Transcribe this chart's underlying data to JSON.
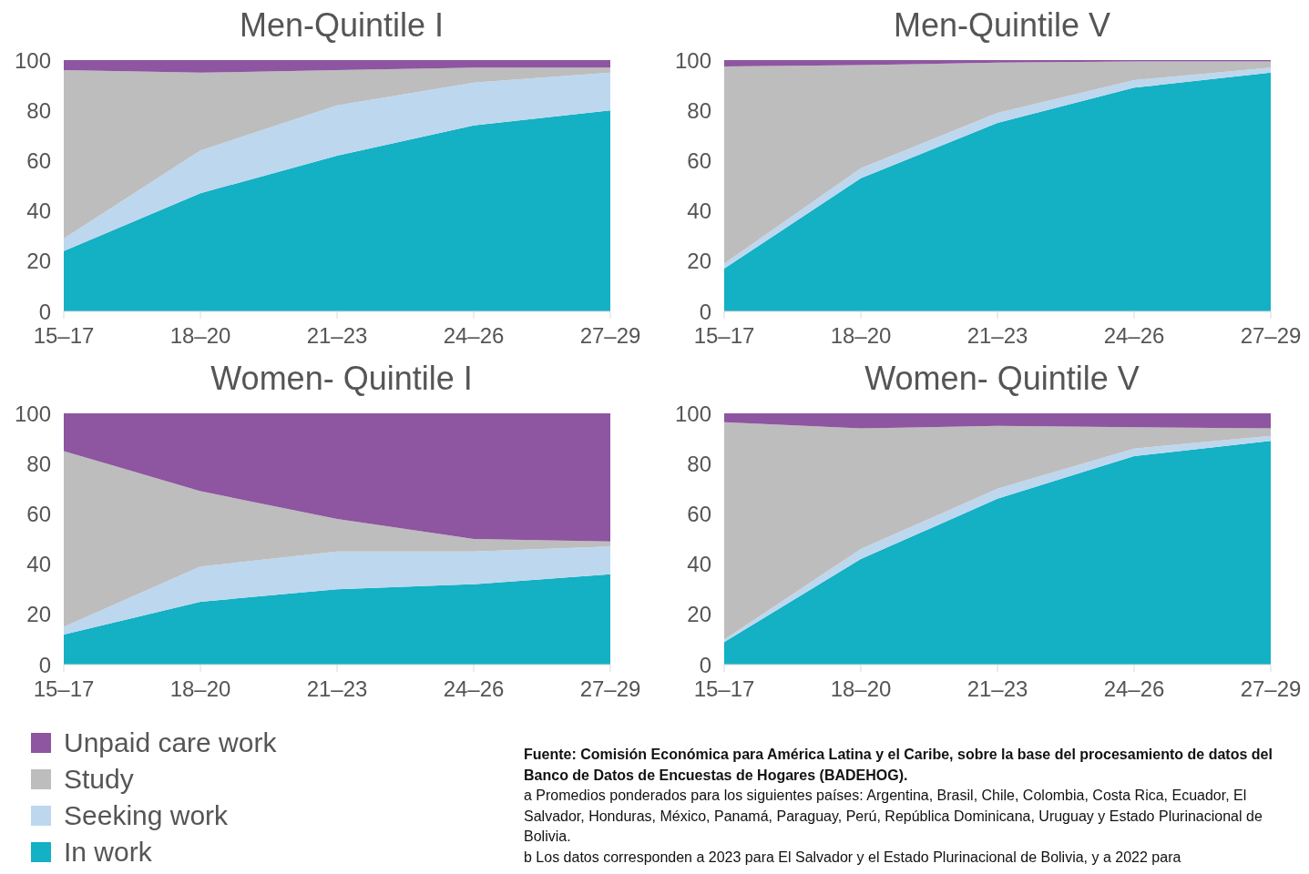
{
  "chart_data": [
    {
      "type": "area",
      "title": "Men-Quintile I",
      "categories": [
        "15–17",
        "18–20",
        "21–23",
        "24–26",
        "27–29"
      ],
      "stacked": true,
      "ylim": [
        0,
        100
      ],
      "yticks": [
        0,
        20,
        40,
        60,
        80,
        100
      ],
      "grid": false,
      "legend": false,
      "series": [
        {
          "color": "#14b0c4",
          "values": [
            24,
            47,
            62,
            74,
            80
          ]
        },
        {
          "color": "#bdd7ee",
          "values": [
            5,
            17,
            20,
            17,
            15
          ]
        },
        {
          "color": "#bdbdbd",
          "values": [
            67,
            31,
            14,
            6,
            2
          ]
        },
        {
          "color": "#8e55a0",
          "values": [
            4,
            5,
            4,
            3,
            3
          ]
        }
      ]
    },
    {
      "type": "area",
      "title": "Men-Quintile V",
      "categories": [
        "15–17",
        "18–20",
        "21–23",
        "24–26",
        "27–29"
      ],
      "stacked": true,
      "ylim": [
        0,
        100
      ],
      "yticks": [
        0,
        20,
        40,
        60,
        80,
        100
      ],
      "grid": false,
      "legend": false,
      "series": [
        {
          "color": "#14b0c4",
          "values": [
            17,
            53,
            75,
            89,
            95
          ]
        },
        {
          "color": "#bdd7ee",
          "values": [
            2,
            4,
            4,
            3,
            2
          ]
        },
        {
          "color": "#bdbdbd",
          "values": [
            78.5,
            41,
            20,
            7.5,
            2.5
          ]
        },
        {
          "color": "#8e55a0",
          "values": [
            2.5,
            2,
            1,
            0.5,
            0.5
          ]
        }
      ]
    },
    {
      "type": "area",
      "title": "Women- Quintile I",
      "categories": [
        "15–17",
        "18–20",
        "21–23",
        "24–26",
        "27–29"
      ],
      "stacked": true,
      "ylim": [
        0,
        100
      ],
      "yticks": [
        0,
        20,
        40,
        60,
        80,
        100
      ],
      "grid": false,
      "legend": "bottom left",
      "series": [
        {
          "name": "In work",
          "color": "#14b0c4",
          "values": [
            12,
            25,
            30,
            32,
            36
          ]
        },
        {
          "name": "Seeking work",
          "color": "#bdd7ee",
          "values": [
            3,
            14,
            15,
            13,
            11
          ]
        },
        {
          "name": "Study",
          "color": "#bdbdbd",
          "values": [
            70,
            30,
            13,
            5,
            2
          ]
        },
        {
          "name": "Unpaid care work",
          "color": "#8e55a0",
          "values": [
            15,
            31,
            42,
            50,
            51
          ]
        }
      ]
    },
    {
      "type": "area",
      "title": "Women- Quintile V",
      "categories": [
        "15–17",
        "18–20",
        "21–23",
        "24–26",
        "27–29"
      ],
      "stacked": true,
      "ylim": [
        0,
        100
      ],
      "yticks": [
        0,
        20,
        40,
        60,
        80,
        100
      ],
      "grid": false,
      "legend": false,
      "annotations": [
        "Fuente: Comisión Económica para América Latina y el Caribe, sobre la base del procesamiento de datos del Banco de Datos de Encuestas de Hogares (BADEHOG).",
        "a Promedios ponderados para los siguientes países: Argentina, Brasil, Chile, Colombia, Costa Rica, Ecuador, El Salvador, Honduras, México, Panamá, Paraguay, Perú, República Dominicana, Uruguay y Estado Plurinacional de Bolivia.",
        "b Los datos corresponden a 2023 para El Salvador y el Estado Plurinacional de Bolivia, y a 2022 para"
      ],
      "series": [
        {
          "color": "#14b0c4",
          "values": [
            9,
            42,
            66,
            83,
            89
          ]
        },
        {
          "color": "#bdd7ee",
          "values": [
            1,
            4,
            4,
            3,
            2
          ]
        },
        {
          "color": "#bdbdbd",
          "values": [
            86.5,
            48,
            25,
            8.5,
            3
          ]
        },
        {
          "color": "#8e55a0",
          "values": [
            3.5,
            6,
            5,
            5.5,
            6
          ]
        }
      ]
    }
  ]
}
